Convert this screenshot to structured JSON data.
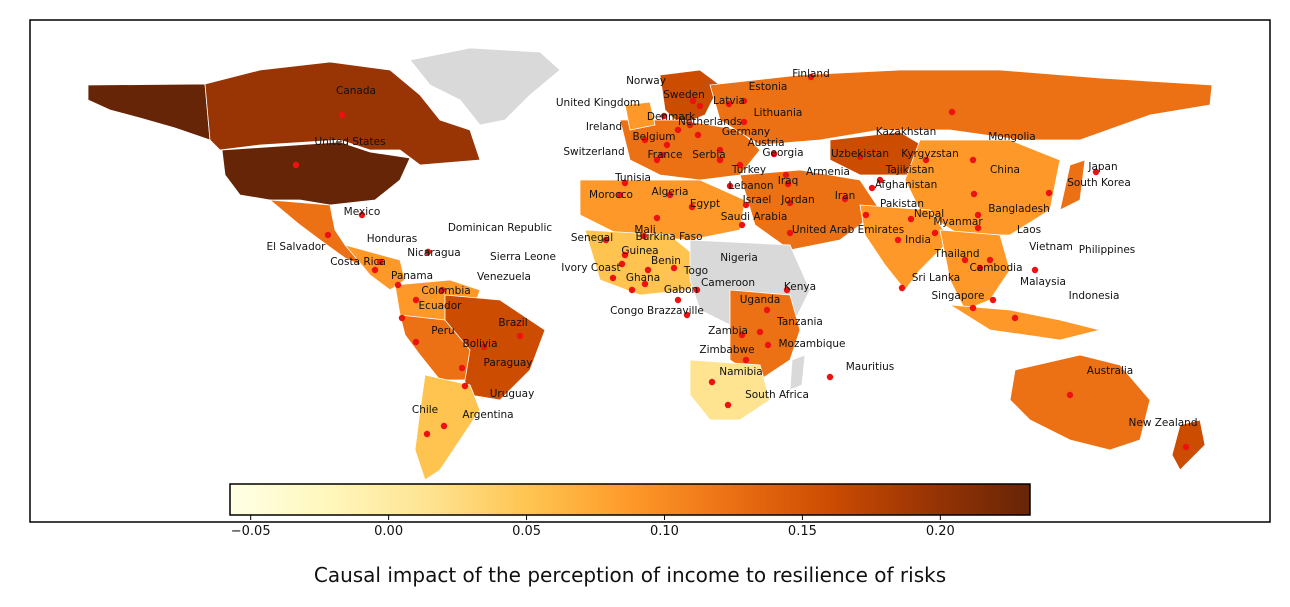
{
  "colors": {
    "background": "#ffffff",
    "no_data": "#d9d9d9",
    "marker": "#ee1111",
    "frame": "#000000"
  },
  "colorbar": {
    "title": "Causal impact of the perception of income to resilience of risks",
    "min": -0.0575,
    "max": 0.2325,
    "ticks": [
      {
        "value": -0.05,
        "label": "−0.05"
      },
      {
        "value": 0.0,
        "label": "0.00"
      },
      {
        "value": 0.05,
        "label": "0.05"
      },
      {
        "value": 0.1,
        "label": "0.10"
      },
      {
        "value": 0.15,
        "label": "0.15"
      },
      {
        "value": 0.2,
        "label": "0.20"
      }
    ],
    "colormap": "YlOrBr",
    "stops": [
      "#ffffe5",
      "#fff7bc",
      "#fee391",
      "#fec44f",
      "#fe9929",
      "#ec7014",
      "#cc4c02",
      "#993404",
      "#662506"
    ]
  },
  "labels": [
    {
      "name": "Canada"
    },
    {
      "name": "United States"
    },
    {
      "name": "Mexico"
    },
    {
      "name": "El Salvador"
    },
    {
      "name": "Honduras"
    },
    {
      "name": "Nicaragua"
    },
    {
      "name": "Costa Rica"
    },
    {
      "name": "Panama"
    },
    {
      "name": "Dominican Republic"
    },
    {
      "name": "Venezuela"
    },
    {
      "name": "Colombia"
    },
    {
      "name": "Ecuador"
    },
    {
      "name": "Peru"
    },
    {
      "name": "Brazil"
    },
    {
      "name": "Bolivia"
    },
    {
      "name": "Paraguay"
    },
    {
      "name": "Uruguay"
    },
    {
      "name": "Chile"
    },
    {
      "name": "Argentina"
    },
    {
      "name": "Norway"
    },
    {
      "name": "Sweden"
    },
    {
      "name": "Finland"
    },
    {
      "name": "Estonia"
    },
    {
      "name": "Latvia"
    },
    {
      "name": "Lithuania"
    },
    {
      "name": "United Kingdom"
    },
    {
      "name": "Ireland"
    },
    {
      "name": "Denmark"
    },
    {
      "name": "Netherlands"
    },
    {
      "name": "Belgium"
    },
    {
      "name": "Germany"
    },
    {
      "name": "Austria"
    },
    {
      "name": "Switzerland"
    },
    {
      "name": "France"
    },
    {
      "name": "Serbia"
    },
    {
      "name": "Georgia"
    },
    {
      "name": "Turkey"
    },
    {
      "name": "Armenia"
    },
    {
      "name": "Lebanon"
    },
    {
      "name": "Iraq"
    },
    {
      "name": "Israel"
    },
    {
      "name": "Jordan"
    },
    {
      "name": "Iran"
    },
    {
      "name": "Tunisia"
    },
    {
      "name": "Algeria"
    },
    {
      "name": "Morocco"
    },
    {
      "name": "Egypt"
    },
    {
      "name": "Saudi Arabia"
    },
    {
      "name": "United Arab Emirates"
    },
    {
      "name": "Kazakhstan"
    },
    {
      "name": "Uzbekistan"
    },
    {
      "name": "Kyrgyzstan"
    },
    {
      "name": "Tajikistan"
    },
    {
      "name": "Afghanistan"
    },
    {
      "name": "Pakistan"
    },
    {
      "name": "Mongolia"
    },
    {
      "name": "China"
    },
    {
      "name": "Japan"
    },
    {
      "name": "South Korea"
    },
    {
      "name": "Bangladesh"
    },
    {
      "name": "Nepal"
    },
    {
      "name": "India"
    },
    {
      "name": "Myanmar"
    },
    {
      "name": "Laos"
    },
    {
      "name": "Thailand"
    },
    {
      "name": "Vietnam"
    },
    {
      "name": "Philippines"
    },
    {
      "name": "Cambodia"
    },
    {
      "name": "Malaysia"
    },
    {
      "name": "Sri Lanka"
    },
    {
      "name": "Singapore"
    },
    {
      "name": "Indonesia"
    },
    {
      "name": "Senegal"
    },
    {
      "name": "Mali"
    },
    {
      "name": "Burkina Faso"
    },
    {
      "name": "Guinea"
    },
    {
      "name": "Sierra Leone"
    },
    {
      "name": "Ivory Coast"
    },
    {
      "name": "Benin"
    },
    {
      "name": "Nigeria"
    },
    {
      "name": "Ghana"
    },
    {
      "name": "Togo"
    },
    {
      "name": "Cameroon"
    },
    {
      "name": "Gabon"
    },
    {
      "name": "Kenya"
    },
    {
      "name": "Uganda"
    },
    {
      "name": "Congo Brazzaville"
    },
    {
      "name": "Tanzania"
    },
    {
      "name": "Zambia"
    },
    {
      "name": "Mozambique"
    },
    {
      "name": "Zimbabwe"
    },
    {
      "name": "Namibia"
    },
    {
      "name": "Mauritius"
    },
    {
      "name": "South Africa"
    },
    {
      "name": "Australia"
    },
    {
      "name": "New Zealand"
    }
  ]
}
